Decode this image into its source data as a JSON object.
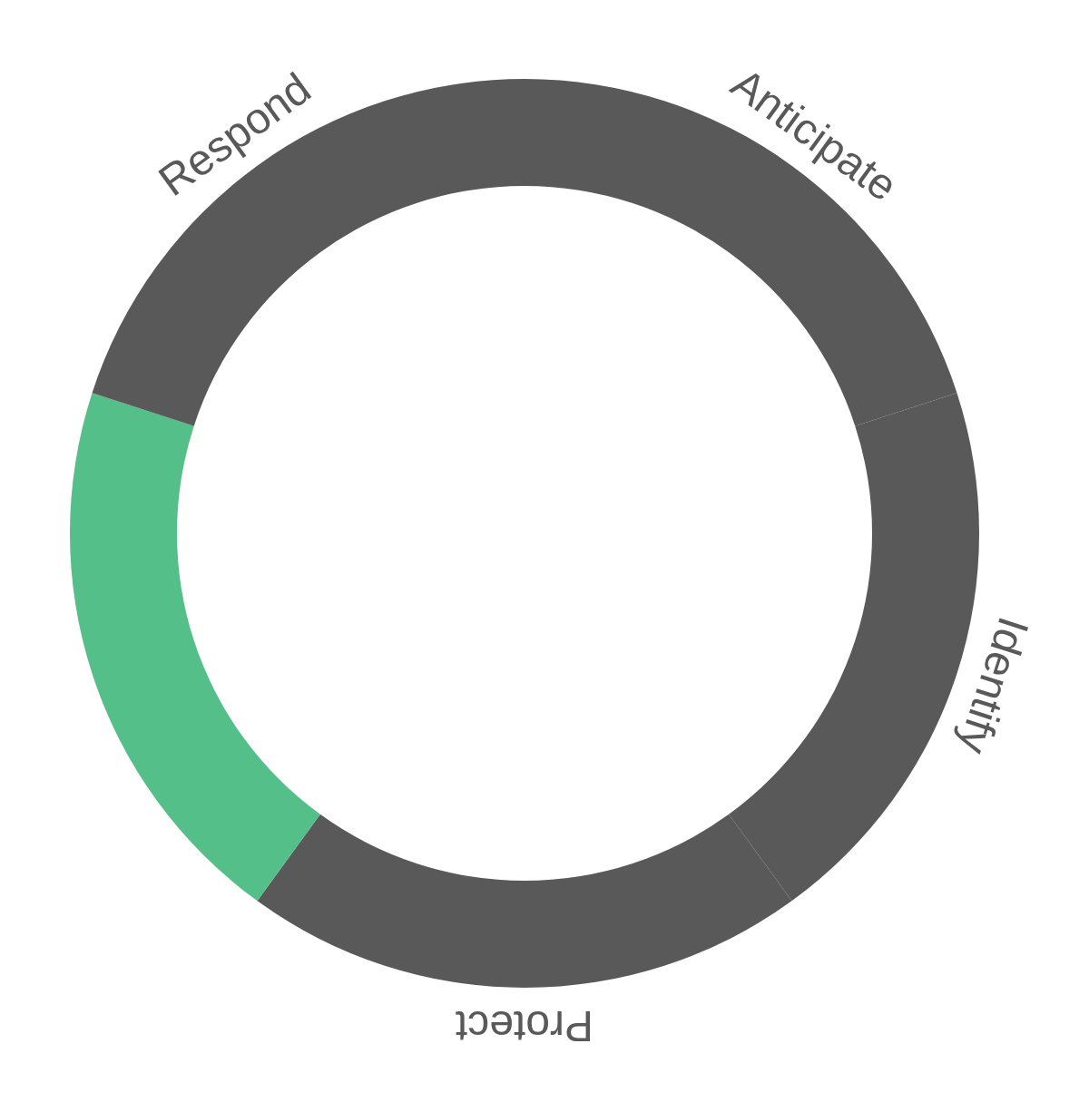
{
  "chart_data": {
    "type": "donut",
    "categories": [
      "Anticipate",
      "Identify",
      "Protect",
      null,
      "Respond"
    ],
    "values": [
      20,
      20,
      20,
      20,
      20
    ],
    "colors": [
      "#595959",
      "#595959",
      "#595959",
      "#55bf8a",
      "#595959"
    ]
  }
}
